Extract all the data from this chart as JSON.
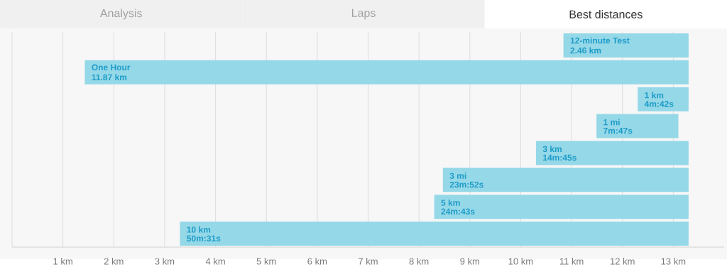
{
  "chart_data": {
    "type": "bar",
    "orientation": "horizontal",
    "categories": [
      "12-minute Test",
      "One Hour",
      "1 km",
      "1 mi",
      "3 km",
      "3 mi",
      "5 km",
      "10 km"
    ],
    "base": [
      10.84,
      1.43,
      12.3,
      11.49,
      10.3,
      8.47,
      8.3,
      3.3
    ],
    "values": [
      2.46,
      11.87,
      1,
      1.61,
      3,
      4.83,
      5,
      10
    ],
    "value_labels": [
      "2.46 km",
      "11.87 km",
      null,
      null,
      null,
      null,
      null,
      null
    ],
    "color": "#95d8e8",
    "xlim": [
      0,
      14
    ],
    "xticks": [
      {
        "value": 0,
        "label": null
      },
      {
        "value": 1,
        "label": "1 km"
      },
      {
        "value": 2,
        "label": "2 km"
      },
      {
        "value": 3,
        "label": "3 km"
      },
      {
        "value": 4,
        "label": "4 km"
      },
      {
        "value": 5,
        "label": "5 km"
      },
      {
        "value": 6,
        "label": "6 km"
      },
      {
        "value": 7,
        "label": "7 km"
      },
      {
        "value": 8,
        "label": "8 km"
      },
      {
        "value": 9,
        "label": "9 km"
      },
      {
        "value": 10,
        "label": "10 km"
      },
      {
        "value": 11,
        "label": "11 km"
      },
      {
        "value": 12,
        "label": "12 km"
      },
      {
        "value": 13,
        "label": "13 km"
      }
    ],
    "grid": "x",
    "annotations": [
      "Analysis",
      "Laps",
      "Best distances",
      {
        "text": "4m:42s",
        "x": 12.3,
        "y": "1 km"
      },
      {
        "text": "7m:47s",
        "x": 11.49,
        "y": "1 mi"
      },
      {
        "text": "14m:45s",
        "x": 10.3,
        "y": "3 km"
      },
      {
        "text": "23m:52s",
        "x": 8.47,
        "y": "3 mi"
      },
      {
        "text": "24m:43s",
        "x": 8.3,
        "y": "5 km"
      },
      {
        "text": "50m:31s",
        "x": 3.3,
        "y": "10 km"
      }
    ]
  }
}
